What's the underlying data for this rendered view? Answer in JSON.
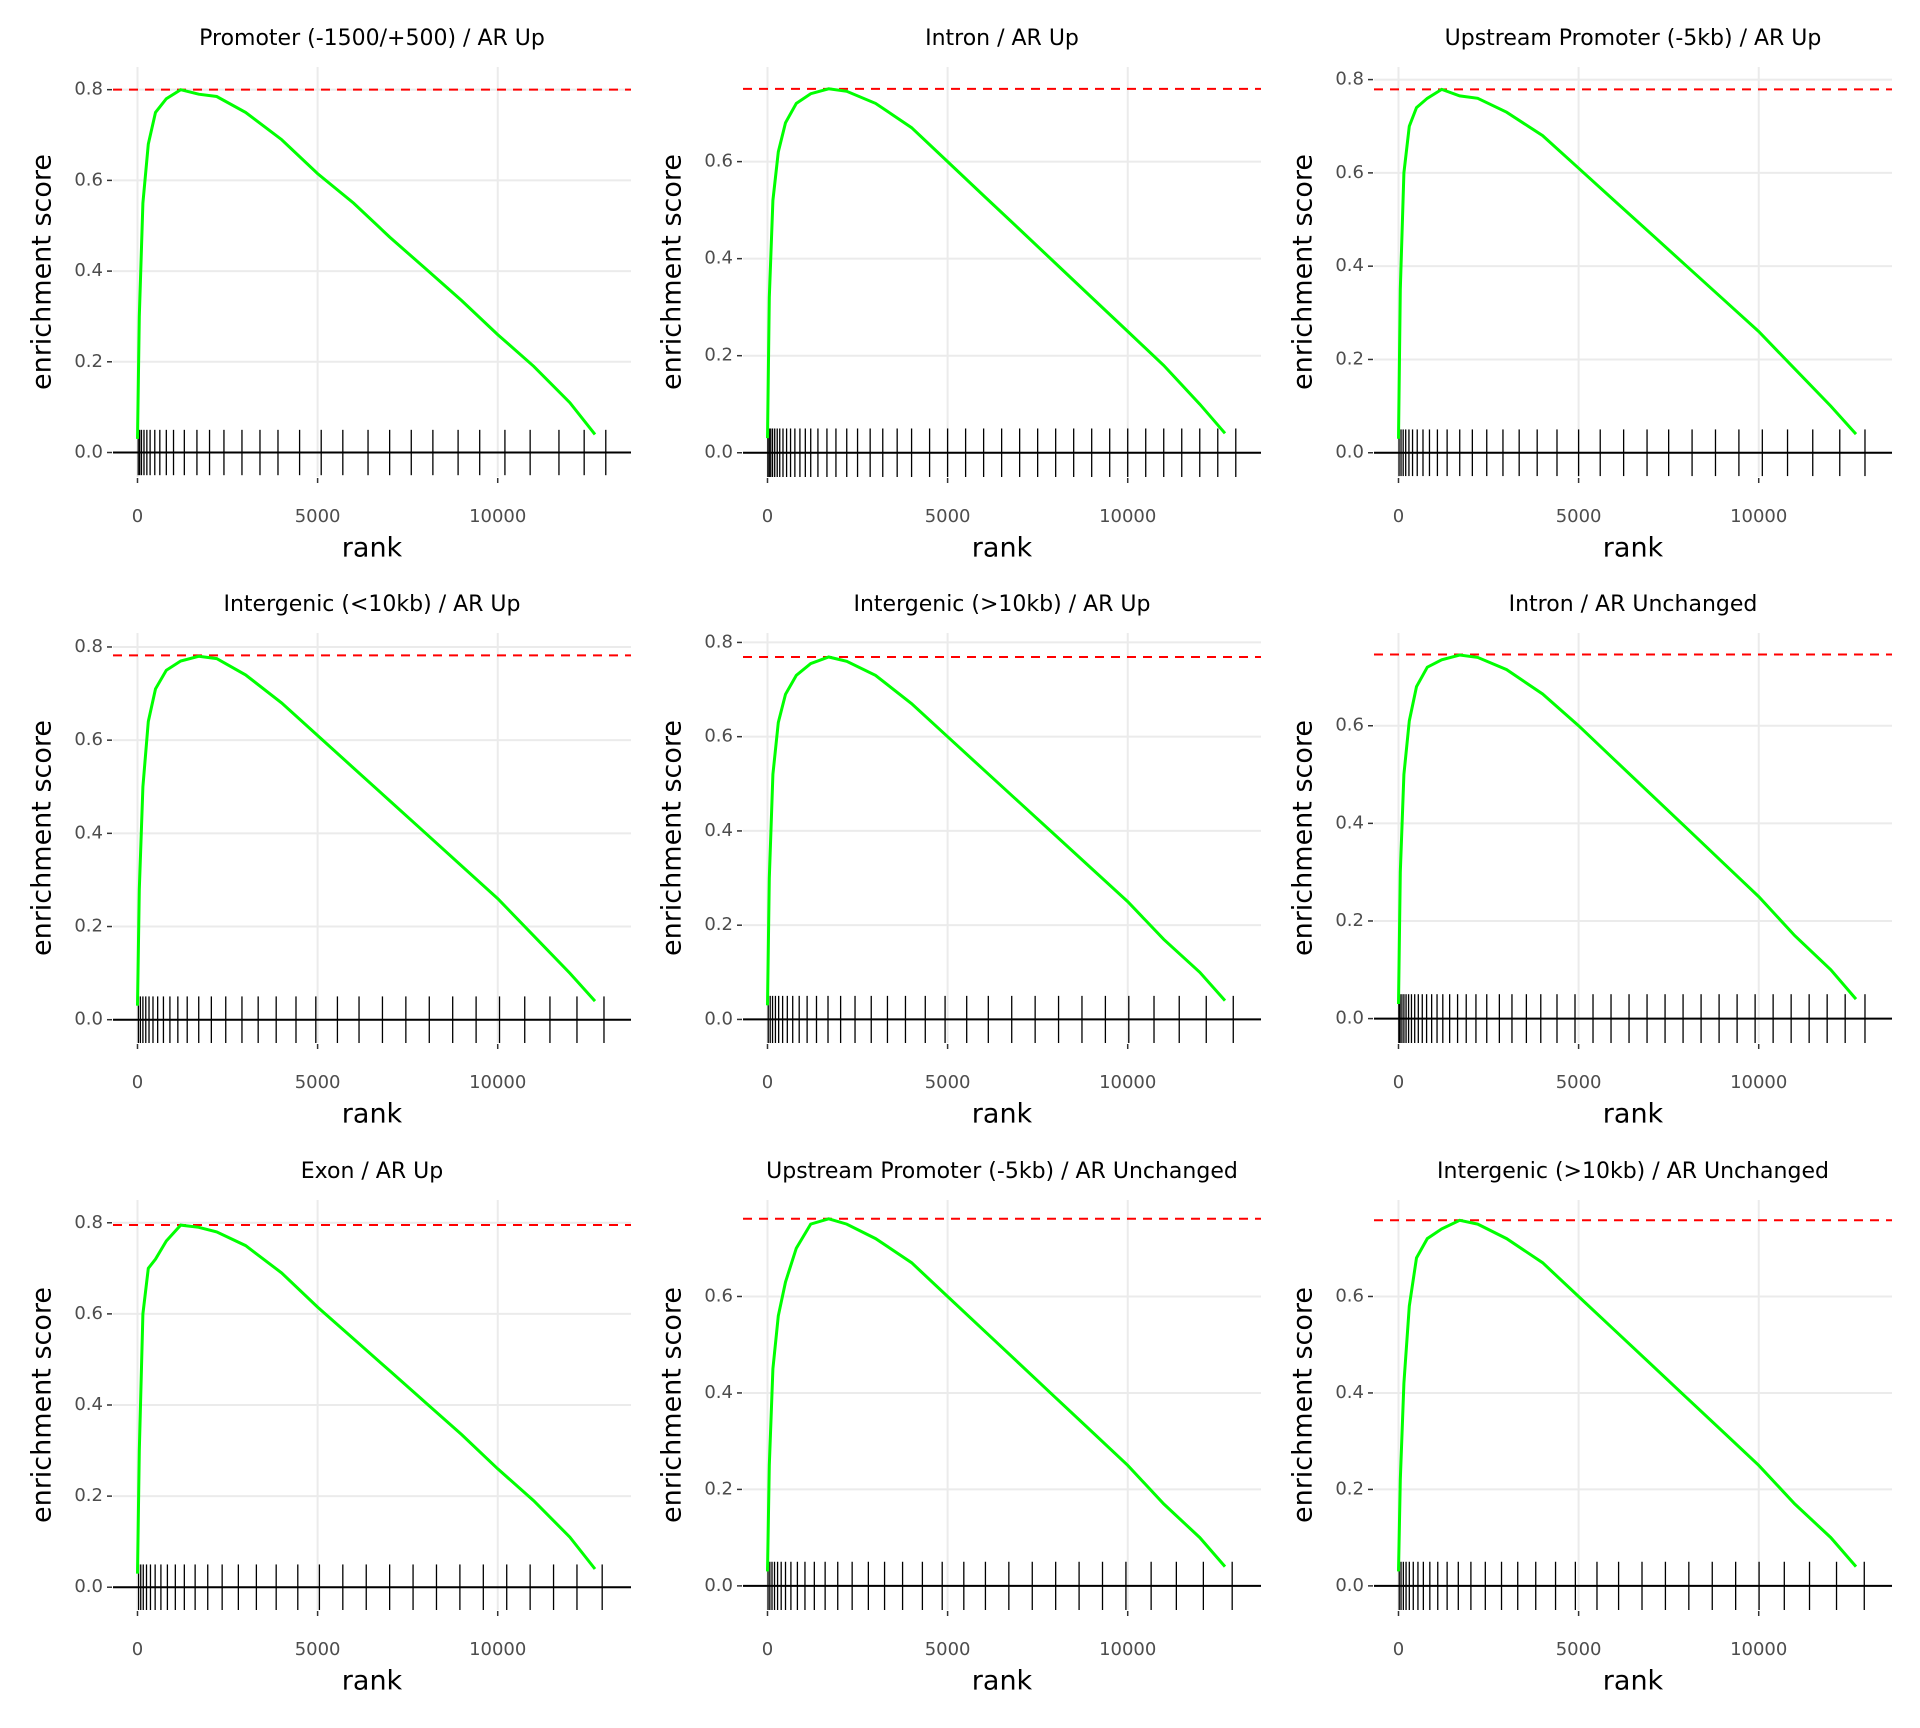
{
  "chart_data": [
    {
      "type": "line",
      "title": "Promoter (-1500/+500) / AR Up",
      "x_label": "rank",
      "y_label": "enrichment score",
      "color": "#00ff00",
      "hline": 0.8,
      "hline_color": "#ff0000",
      "hits_color": "#000000",
      "rug_ylim": [
        -0.05,
        0.05
      ],
      "grid": true,
      "xlim": [
        -680,
        13700
      ],
      "xticks": [
        0,
        5000,
        10000
      ],
      "ylim": [
        -0.054,
        0.85
      ],
      "yticks": [
        {
          "value": 0,
          "label": "0.0"
        },
        0.2,
        0.4,
        0.6,
        0.8
      ],
      "x": [
        0,
        50,
        150,
        300,
        500,
        800,
        1200,
        1700,
        2200,
        3000,
        4000,
        5000,
        6000,
        7000,
        8000,
        9000,
        10000,
        11000,
        12000,
        12700
      ],
      "values": [
        0.03,
        0.3,
        0.55,
        0.68,
        0.75,
        0.78,
        0.8,
        0.79,
        0.785,
        0.75,
        0.69,
        0.615,
        0.55,
        0.475,
        0.405,
        0.335,
        0.26,
        0.19,
        0.11,
        0.04
      ],
      "hits": [
        20,
        60,
        110,
        180,
        260,
        350,
        480,
        620,
        800,
        1000,
        1300,
        1650,
        2000,
        2400,
        2900,
        3400,
        3900,
        4500,
        5100,
        5700,
        6400,
        7000,
        7600,
        8200,
        8900,
        9500,
        10200,
        10900,
        11700,
        12400,
        13000
      ]
    },
    {
      "type": "line",
      "title": "Intron / AR Up",
      "x_label": "rank",
      "y_label": "enrichment score",
      "color": "#00ff00",
      "hline": 0.75,
      "hline_color": "#ff0000",
      "hits_color": "#000000",
      "rug_ylim": [
        -0.05,
        0.05
      ],
      "grid": true,
      "xlim": [
        -680,
        13700
      ],
      "xticks": [
        0,
        5000,
        10000
      ],
      "ylim": [
        -0.05,
        0.795
      ],
      "yticks": [
        {
          "value": 0,
          "label": "0.0"
        },
        0.2,
        0.4,
        0.6
      ],
      "x": [
        0,
        50,
        150,
        300,
        500,
        800,
        1200,
        1700,
        2200,
        3000,
        4000,
        5000,
        6000,
        7000,
        8000,
        9000,
        10000,
        11000,
        12000,
        12700
      ],
      "values": [
        0.03,
        0.32,
        0.52,
        0.62,
        0.68,
        0.72,
        0.74,
        0.75,
        0.745,
        0.72,
        0.67,
        0.6,
        0.53,
        0.46,
        0.39,
        0.32,
        0.25,
        0.18,
        0.1,
        0.04
      ],
      "hits": [
        10,
        50,
        90,
        140,
        200,
        270,
        340,
        430,
        530,
        640,
        760,
        900,
        1050,
        1200,
        1400,
        1650,
        1900,
        2200,
        2500,
        2850,
        3200,
        3600,
        4000,
        4500,
        5000,
        5500,
        6000,
        6500,
        7000,
        7500,
        8000,
        8500,
        9000,
        9500,
        10000,
        10500,
        11000,
        11500,
        12000,
        12500,
        13000
      ]
    },
    {
      "type": "line",
      "title": "Upstream Promoter (-5kb) / AR Up",
      "x_label": "rank",
      "y_label": "enrichment score",
      "color": "#00ff00",
      "hline": 0.779,
      "hline_color": "#ff0000",
      "hits_color": "#000000",
      "rug_ylim": [
        -0.05,
        0.05
      ],
      "grid": true,
      "xlim": [
        -680,
        13700
      ],
      "xticks": [
        0,
        5000,
        10000
      ],
      "ylim": [
        -0.052,
        0.827
      ],
      "yticks": [
        {
          "value": 0,
          "label": "0.0"
        },
        0.2,
        0.4,
        0.6,
        0.8
      ],
      "x": [
        0,
        50,
        150,
        300,
        500,
        800,
        1200,
        1700,
        2200,
        3000,
        4000,
        5000,
        6000,
        7000,
        8000,
        9000,
        10000,
        11000,
        12000,
        12700
      ],
      "values": [
        0.03,
        0.35,
        0.6,
        0.7,
        0.74,
        0.76,
        0.779,
        0.765,
        0.76,
        0.73,
        0.68,
        0.61,
        0.54,
        0.47,
        0.4,
        0.33,
        0.26,
        0.18,
        0.1,
        0.04
      ],
      "hits": [
        15,
        70,
        130,
        200,
        290,
        390,
        520,
        680,
        860,
        1080,
        1350,
        1700,
        2050,
        2450,
        2900,
        3350,
        3850,
        4400,
        5000,
        5600,
        6250,
        6900,
        7500,
        8150,
        8800,
        9450,
        10100,
        10800,
        11500,
        12250,
        12950
      ]
    },
    {
      "type": "line",
      "title": "Intergenic (<10kb) / AR Up",
      "x_label": "rank",
      "y_label": "enrichment score",
      "color": "#00ff00",
      "hline": 0.782,
      "hline_color": "#ff0000",
      "hits_color": "#000000",
      "rug_ylim": [
        -0.05,
        0.05
      ],
      "grid": true,
      "xlim": [
        -680,
        13700
      ],
      "xticks": [
        0,
        5000,
        10000
      ],
      "ylim": [
        -0.05,
        0.83
      ],
      "yticks": [
        {
          "value": 0,
          "label": "0.0"
        },
        0.2,
        0.4,
        0.6,
        0.8
      ],
      "x": [
        0,
        50,
        150,
        300,
        500,
        800,
        1200,
        1700,
        2200,
        3000,
        4000,
        5000,
        6000,
        7000,
        8000,
        9000,
        10000,
        11000,
        12000,
        12700
      ],
      "values": [
        0.03,
        0.28,
        0.5,
        0.64,
        0.71,
        0.75,
        0.77,
        0.78,
        0.775,
        0.74,
        0.68,
        0.61,
        0.54,
        0.47,
        0.4,
        0.33,
        0.26,
        0.18,
        0.1,
        0.04
      ],
      "hits": [
        25,
        80,
        150,
        230,
        320,
        430,
        560,
        720,
        900,
        1120,
        1380,
        1700,
        2050,
        2450,
        2900,
        3350,
        3850,
        4400,
        4950,
        5550,
        6150,
        6800,
        7450,
        8100,
        8750,
        9400,
        10050,
        10750,
        11450,
        12200,
        12950
      ]
    },
    {
      "type": "line",
      "title": "Intergenic (>10kb) / AR Up",
      "x_label": "rank",
      "y_label": "enrichment score",
      "color": "#00ff00",
      "hline": 0.769,
      "hline_color": "#ff0000",
      "hits_color": "#000000",
      "rug_ylim": [
        -0.05,
        0.05
      ],
      "grid": true,
      "xlim": [
        -680,
        13700
      ],
      "xticks": [
        0,
        5000,
        10000
      ],
      "ylim": [
        -0.05,
        0.82
      ],
      "yticks": [
        {
          "value": 0,
          "label": "0.0"
        },
        0.2,
        0.4,
        0.6,
        0.8
      ],
      "x": [
        0,
        50,
        150,
        300,
        500,
        800,
        1200,
        1700,
        2200,
        3000,
        4000,
        5000,
        6000,
        7000,
        8000,
        9000,
        10000,
        11000,
        12000,
        12700
      ],
      "values": [
        0.03,
        0.3,
        0.52,
        0.63,
        0.69,
        0.73,
        0.755,
        0.769,
        0.76,
        0.73,
        0.67,
        0.6,
        0.53,
        0.46,
        0.39,
        0.32,
        0.25,
        0.17,
        0.1,
        0.04
      ],
      "hits": [
        20,
        75,
        140,
        220,
        310,
        420,
        550,
        700,
        880,
        1100,
        1360,
        1680,
        2030,
        2430,
        2880,
        3330,
        3830,
        4380,
        4930,
        5530,
        6130,
        6780,
        7430,
        8080,
        8730,
        9380,
        10030,
        10730,
        11430,
        12180,
        12930
      ]
    },
    {
      "type": "line",
      "title": "Intron / AR Unchanged",
      "x_label": "rank",
      "y_label": "enrichment score",
      "color": "#00ff00",
      "hline": 0.746,
      "hline_color": "#ff0000",
      "hits_color": "#000000",
      "rug_ylim": [
        -0.05,
        0.05
      ],
      "grid": true,
      "xlim": [
        -680,
        13700
      ],
      "xticks": [
        0,
        5000,
        10000
      ],
      "ylim": [
        -0.05,
        0.79
      ],
      "yticks": [
        {
          "value": 0,
          "label": "0.0"
        },
        0.2,
        0.4,
        0.6
      ],
      "x": [
        0,
        50,
        150,
        300,
        500,
        800,
        1200,
        1700,
        2200,
        3000,
        4000,
        5000,
        6000,
        7000,
        8000,
        9000,
        10000,
        11000,
        12000,
        12700
      ],
      "values": [
        0.03,
        0.3,
        0.5,
        0.61,
        0.68,
        0.72,
        0.735,
        0.745,
        0.74,
        0.715,
        0.665,
        0.6,
        0.53,
        0.46,
        0.39,
        0.32,
        0.25,
        0.17,
        0.1,
        0.04
      ],
      "hits": [
        10,
        45,
        95,
        150,
        210,
        280,
        360,
        450,
        550,
        660,
        780,
        920,
        1070,
        1230,
        1420,
        1640,
        1880,
        2150,
        2450,
        2800,
        3150,
        3550,
        3950,
        4400,
        4900,
        5400,
        5900,
        6400,
        6900,
        7400,
        7900,
        8400,
        8900,
        9400,
        9900,
        10400,
        10900,
        11400,
        11900,
        12400,
        12950
      ]
    },
    {
      "type": "line",
      "title": "Exon / AR Up",
      "x_label": "rank",
      "y_label": "enrichment score",
      "color": "#00ff00",
      "hline": 0.795,
      "hline_color": "#ff0000",
      "hits_color": "#000000",
      "rug_ylim": [
        -0.05,
        0.05
      ],
      "grid": true,
      "xlim": [
        -680,
        13700
      ],
      "xticks": [
        0,
        5000,
        10000
      ],
      "ylim": [
        -0.05,
        0.85
      ],
      "yticks": [
        {
          "value": 0,
          "label": "0.0"
        },
        0.2,
        0.4,
        0.6,
        0.8
      ],
      "x": [
        0,
        50,
        150,
        300,
        500,
        800,
        1200,
        1700,
        2200,
        3000,
        4000,
        5000,
        6000,
        7000,
        8000,
        9000,
        10000,
        11000,
        12000,
        12700
      ],
      "values": [
        0.03,
        0.3,
        0.6,
        0.7,
        0.72,
        0.76,
        0.795,
        0.79,
        0.78,
        0.75,
        0.69,
        0.615,
        0.545,
        0.475,
        0.405,
        0.335,
        0.26,
        0.19,
        0.11,
        0.04
      ],
      "hits": [
        30,
        90,
        160,
        250,
        360,
        490,
        650,
        830,
        1050,
        1300,
        1600,
        1950,
        2350,
        2800,
        3300,
        3850,
        4450,
        5050,
        5700,
        6350,
        7000,
        7650,
        8300,
        8950,
        9600,
        10250,
        10900,
        11550,
        12200,
        12900
      ]
    },
    {
      "type": "line",
      "title": "Upstream Promoter (-5kb) / AR Unchanged",
      "x_label": "rank",
      "y_label": "enrichment score",
      "color": "#00ff00",
      "hline": 0.761,
      "hline_color": "#ff0000",
      "hits_color": "#000000",
      "rug_ylim": [
        -0.05,
        0.05
      ],
      "grid": true,
      "xlim": [
        -680,
        13700
      ],
      "xticks": [
        0,
        5000,
        10000
      ],
      "ylim": [
        -0.05,
        0.8
      ],
      "yticks": [
        {
          "value": 0,
          "label": "0.0"
        },
        0.2,
        0.4,
        0.6
      ],
      "x": [
        0,
        50,
        150,
        300,
        500,
        800,
        1200,
        1700,
        2200,
        3000,
        4000,
        5000,
        6000,
        7000,
        8000,
        9000,
        10000,
        11000,
        12000,
        12700
      ],
      "values": [
        0.03,
        0.25,
        0.45,
        0.56,
        0.63,
        0.7,
        0.75,
        0.761,
        0.75,
        0.72,
        0.67,
        0.6,
        0.53,
        0.46,
        0.39,
        0.32,
        0.25,
        0.17,
        0.1,
        0.04
      ],
      "hits": [
        15,
        65,
        125,
        195,
        280,
        380,
        500,
        650,
        830,
        1040,
        1300,
        1600,
        1950,
        2350,
        2800,
        3250,
        3750,
        4300,
        4850,
        5450,
        6050,
        6700,
        7350,
        8000,
        8650,
        9300,
        9950,
        10650,
        11350,
        12100,
        12900
      ]
    },
    {
      "type": "line",
      "title": "Intergenic (>10kb) / AR Unchanged",
      "x_label": "rank",
      "y_label": "enrichment score",
      "color": "#00ff00",
      "hline": 0.758,
      "hline_color": "#ff0000",
      "hits_color": "#000000",
      "rug_ylim": [
        -0.05,
        0.05
      ],
      "grid": true,
      "xlim": [
        -680,
        13700
      ],
      "xticks": [
        0,
        5000,
        10000
      ],
      "ylim": [
        -0.05,
        0.8
      ],
      "yticks": [
        {
          "value": 0,
          "label": "0.0"
        },
        0.2,
        0.4,
        0.6
      ],
      "x": [
        0,
        50,
        150,
        300,
        500,
        800,
        1200,
        1700,
        2200,
        3000,
        4000,
        5000,
        6000,
        7000,
        8000,
        9000,
        10000,
        11000,
        12000,
        12700
      ],
      "values": [
        0.03,
        0.22,
        0.42,
        0.58,
        0.68,
        0.72,
        0.74,
        0.758,
        0.75,
        0.72,
        0.67,
        0.6,
        0.53,
        0.46,
        0.39,
        0.32,
        0.25,
        0.17,
        0.1,
        0.04
      ],
      "hits": [
        20,
        70,
        135,
        210,
        300,
        410,
        540,
        690,
        870,
        1090,
        1350,
        1660,
        2010,
        2410,
        2860,
        3310,
        3810,
        4360,
        4910,
        5510,
        6110,
        6760,
        7410,
        8060,
        8710,
        9360,
        10010,
        10710,
        11410,
        12160,
        12930
      ]
    }
  ]
}
